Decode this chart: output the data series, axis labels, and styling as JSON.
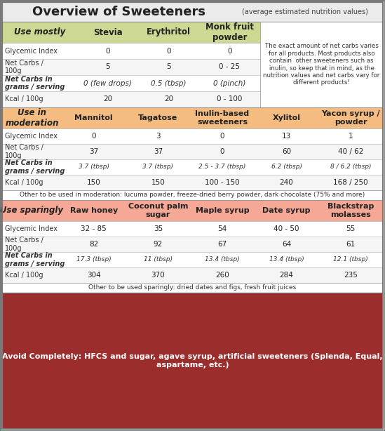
{
  "title": "Overview of Sweeteners",
  "title_sub": "(average estimated nutrition values)",
  "section1_header_color": "#cdd993",
  "section1_header_text": "Use mostly",
  "section1_cols": [
    "Stevia",
    "Erythritol",
    "Monk fruit\npowder"
  ],
  "section1_rows": [
    [
      "Glycemic Index",
      "0",
      "0",
      "0"
    ],
    [
      "Net Carbs /\n100g",
      "5",
      "5",
      "0 - 25"
    ],
    [
      "Net Carbs in\ngrams / serving",
      "0 (few drops)",
      "0.5 (tbsp)",
      "0 (pinch)"
    ],
    [
      "Kcal / 100g",
      "20",
      "20",
      "0 - 100"
    ]
  ],
  "section1_note": "The exact amount of net carbs varies\nfor all products. Most products also\ncontain  other sweeteners such as\ninulin, so keep that in mind, as the\nnutrition values and net carbs vary for\ndifferent products!",
  "section2_header_color": "#f5bc82",
  "section2_header_text": "Use in\nmoderation",
  "section2_cols": [
    "Mannitol",
    "Tagatose",
    "Inulin-based\nsweeteners",
    "Xylitol",
    "Yacon syrup /\npowder"
  ],
  "section2_rows": [
    [
      "Glycemic Index",
      "0",
      "3",
      "0",
      "13",
      "1"
    ],
    [
      "Net Carbs /\n100g",
      "37",
      "37",
      "0",
      "60",
      "40 / 62"
    ],
    [
      "Net Carbs in\ngrams / serving",
      "3.7 (tbsp)",
      "3.7 (tbsp)",
      "2.5 - 3.7 (tbsp)",
      "6.2 (tbsp)",
      "8 / 6.2 (tbsp)"
    ],
    [
      "Kcal / 100g",
      "150",
      "150",
      "100 - 150",
      "240",
      "168 / 250"
    ]
  ],
  "section2_note": "Other to be used in moderation: lucuma powder, freeze-dried berry powder, dark chocolate (75% and more)",
  "section3_header_color": "#f5a896",
  "section3_header_text": "Use sparingly",
  "section3_cols": [
    "Raw honey",
    "Coconut palm\nsugar",
    "Maple syrup",
    "Date syrup",
    "Blackstrap\nmolasses"
  ],
  "section3_rows": [
    [
      "Glycemic Index",
      "32 - 85",
      "35",
      "54",
      "40 - 50",
      "55"
    ],
    [
      "Net Carbs /\n100g",
      "82",
      "92",
      "67",
      "64",
      "61"
    ],
    [
      "Net Carbs in\ngrams / serving",
      "17.3 (tbsp)",
      "11 (tbsp)",
      "13.4 (tbsp)",
      "13.4 (tbsp)",
      "12.1 (tbsp)"
    ],
    [
      "Kcal / 100g",
      "304",
      "370",
      "260",
      "284",
      "235"
    ]
  ],
  "section3_note": "Other to be used sparingly: dried dates and figs, fresh fruit juices",
  "avoid_text": "Avoid Completely: HFCS and sugar, agave syrup, artificial sweeteners (Splenda, Equal,\naspartame, etc.)",
  "avoid_bg": "#9b2d2d",
  "avoid_text_color": "#ffffff",
  "outer_border": "#777777",
  "grid_color": "#bbbbbb",
  "cell_bg_even": "#ffffff",
  "cell_bg_odd": "#f5f5f5",
  "text_color": "#222222",
  "label_italic_color": "#333333"
}
